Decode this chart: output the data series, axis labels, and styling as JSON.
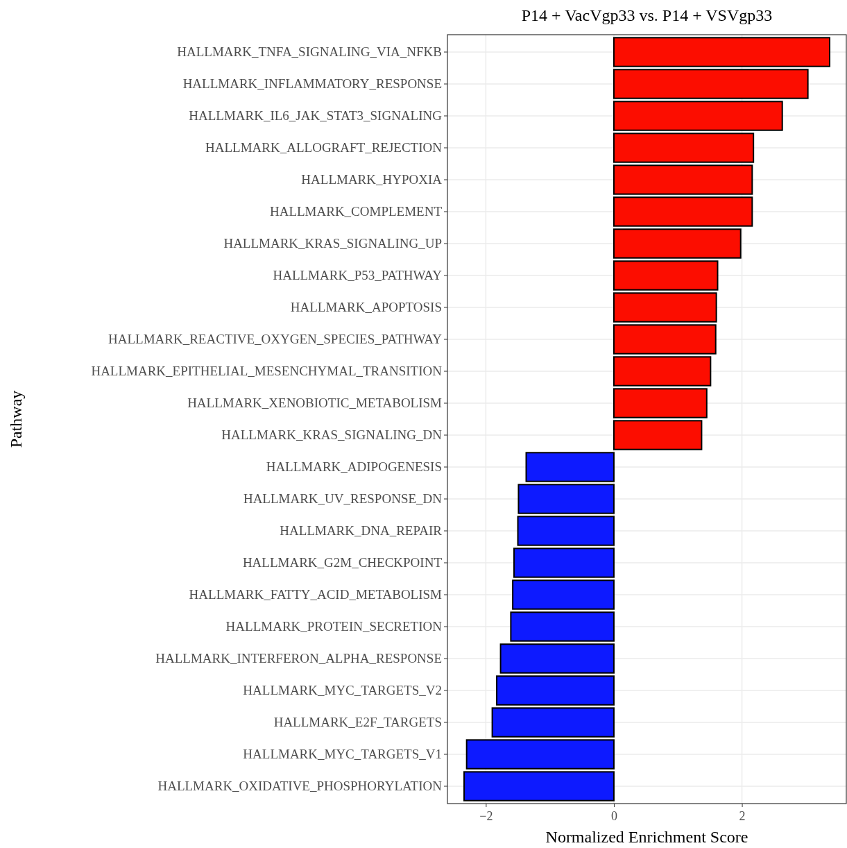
{
  "chart_data": {
    "type": "bar",
    "orientation": "horizontal",
    "title": "P14 + VacVgp33 vs. P14 + VSVgp33",
    "xlabel": "Normalized Enrichment Score",
    "ylabel": "Pathway",
    "categories": [
      "HALLMARK_TNFA_SIGNALING_VIA_NFKB",
      "HALLMARK_INFLAMMATORY_RESPONSE",
      "HALLMARK_IL6_JAK_STAT3_SIGNALING",
      "HALLMARK_ALLOGRAFT_REJECTION",
      "HALLMARK_HYPOXIA",
      "HALLMARK_COMPLEMENT",
      "HALLMARK_KRAS_SIGNALING_UP",
      "HALLMARK_P53_PATHWAY",
      "HALLMARK_APOPTOSIS",
      "HALLMARK_REACTIVE_OXYGEN_SPECIES_PATHWAY",
      "HALLMARK_EPITHELIAL_MESENCHYMAL_TRANSITION",
      "HALLMARK_XENOBIOTIC_METABOLISM",
      "HALLMARK_KRAS_SIGNALING_DN",
      "HALLMARK_ADIPOGENESIS",
      "HALLMARK_UV_RESPONSE_DN",
      "HALLMARK_DNA_REPAIR",
      "HALLMARK_G2M_CHECKPOINT",
      "HALLMARK_FATTY_ACID_METABOLISM",
      "HALLMARK_PROTEIN_SECRETION",
      "HALLMARK_INTERFERON_ALPHA_RESPONSE",
      "HALLMARK_MYC_TARGETS_V2",
      "HALLMARK_E2F_TARGETS",
      "HALLMARK_MYC_TARGETS_V1",
      "HALLMARK_OXIDATIVE_PHOSPHORYLATION"
    ],
    "values": [
      3.37,
      3.03,
      2.63,
      2.18,
      2.16,
      2.16,
      1.98,
      1.62,
      1.6,
      1.59,
      1.51,
      1.45,
      1.37,
      -1.37,
      -1.49,
      -1.5,
      -1.56,
      -1.58,
      -1.61,
      -1.77,
      -1.83,
      -1.9,
      -2.3,
      -2.34
    ],
    "colors": [
      "#fc0d00",
      "#fc0d00",
      "#fc0d00",
      "#fc0d00",
      "#fc0d00",
      "#fc0d00",
      "#fc0d00",
      "#fc0d00",
      "#fc0d00",
      "#fc0d00",
      "#fc0d00",
      "#fc0d00",
      "#fc0d00",
      "#0d1aff",
      "#0d1aff",
      "#0d1aff",
      "#0d1aff",
      "#0d1aff",
      "#0d1aff",
      "#0d1aff",
      "#0d1aff",
      "#0d1aff",
      "#0d1aff",
      "#0d1aff"
    ],
    "xlim": [
      -2.6,
      3.63
    ],
    "xticks": [
      {
        "value": -2,
        "label": "−2"
      },
      0,
      2
    ],
    "grid": true
  }
}
